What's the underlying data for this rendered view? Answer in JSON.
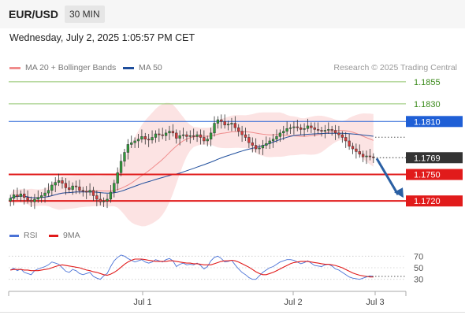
{
  "header": {
    "pair": "EUR/USD",
    "timeframe": "30 MIN"
  },
  "datetime": "Wednesday, July 2, 2025 1:05:57 PM CET",
  "legend": {
    "bollinger": {
      "label": "MA 20 + Bollinger Bands",
      "color": "#f08c8c"
    },
    "ma50": {
      "label": "MA 50",
      "color": "#1f4e9c"
    },
    "credit": "Research © 2025 Trading Central"
  },
  "rsi_legend": {
    "rsi": {
      "label": "RSI",
      "color": "#4a72d6"
    },
    "ma9": {
      "label": "9MA",
      "color": "#e11b1b"
    }
  },
  "chart_data": [
    {
      "type": "candlestick",
      "title": "EUR/USD 30 MIN",
      "ylim": [
        1.1705,
        1.1862
      ],
      "current_price": 1.1769,
      "price_levels": [
        {
          "value": 1.1855,
          "label": "1.1855",
          "color": "#8fc46b",
          "style": "resistance"
        },
        {
          "value": 1.183,
          "label": "1.1830",
          "color": "#8fc46b",
          "style": "resistance"
        },
        {
          "value": 1.181,
          "label": "1.1810",
          "color": "#1f5fd6",
          "style": "pivot"
        },
        {
          "value": 1.175,
          "label": "1.1750",
          "color": "#e11b1b",
          "style": "support"
        },
        {
          "value": 1.172,
          "label": "1.1720",
          "color": "#e11b1b",
          "style": "support"
        }
      ],
      "x_ticks": [
        "Jul 1",
        "Jul 2",
        "Jul 3"
      ],
      "close_series": [
        1.1723,
        1.1727,
        1.1725,
        1.1728,
        1.1724,
        1.1721,
        1.1719,
        1.1722,
        1.1724,
        1.1726,
        1.1729,
        1.1732,
        1.1738,
        1.1741,
        1.1743,
        1.174,
        1.1735,
        1.1733,
        1.1737,
        1.1736,
        1.1732,
        1.1731,
        1.173,
        1.1732,
        1.1726,
        1.1722,
        1.1719,
        1.172,
        1.1722,
        1.173,
        1.174,
        1.1752,
        1.1765,
        1.1775,
        1.1784,
        1.1786,
        1.1788,
        1.179,
        1.1793,
        1.179,
        1.1789,
        1.1792,
        1.1796,
        1.1795,
        1.1794,
        1.1797,
        1.1799,
        1.1797,
        1.1791,
        1.1794,
        1.1795,
        1.1793,
        1.1794,
        1.1793,
        1.1795,
        1.1792,
        1.1788,
        1.179,
        1.1797,
        1.1808,
        1.1812,
        1.181,
        1.1806,
        1.1807,
        1.1808,
        1.1803,
        1.1799,
        1.1795,
        1.1792,
        1.1786,
        1.1783,
        1.1779,
        1.178,
        1.1783,
        1.1785,
        1.1788,
        1.179,
        1.1793,
        1.1797,
        1.1799,
        1.1802,
        1.1803,
        1.1804,
        1.1803,
        1.1801,
        1.1802,
        1.1805,
        1.1803,
        1.1801,
        1.18,
        1.1799,
        1.18,
        1.1801,
        1.18,
        1.1797,
        1.1795,
        1.1792,
        1.1788,
        1.1782,
        1.1779,
        1.1776,
        1.1773,
        1.177,
        1.1771,
        1.177,
        1.1769
      ],
      "forecast": {
        "from": 1.1769,
        "to": 1.172,
        "direction": "down",
        "color": "#2a5fa3"
      }
    },
    {
      "type": "line",
      "title": "RSI",
      "ylim": [
        20,
        80
      ],
      "y_ticks": [
        70,
        50,
        30
      ],
      "series": [
        {
          "name": "RSI",
          "color": "#4a72d6",
          "values": [
            46,
            49,
            45,
            48,
            42,
            40,
            38,
            45,
            48,
            50,
            52,
            55,
            60,
            58,
            56,
            50,
            44,
            42,
            47,
            45,
            40,
            38,
            40,
            42,
            35,
            32,
            30,
            36,
            40,
            52,
            62,
            68,
            72,
            70,
            66,
            63,
            60,
            62,
            64,
            60,
            58,
            60,
            64,
            62,
            60,
            64,
            66,
            62,
            52,
            56,
            58,
            55,
            56,
            55,
            58,
            54,
            48,
            52,
            62,
            68,
            70,
            66,
            60,
            61,
            63,
            55,
            48,
            42,
            38,
            33,
            30,
            30,
            36,
            42,
            46,
            50,
            52,
            56,
            60,
            62,
            64,
            64,
            63,
            60,
            57,
            59,
            62,
            58,
            54,
            53,
            52,
            55,
            56,
            53,
            48,
            46,
            42,
            38,
            34,
            32,
            31,
            30,
            32,
            34,
            36,
            35
          ]
        },
        {
          "name": "9MA",
          "color": "#e11b1b",
          "values": [
            46,
            47,
            47,
            47,
            46,
            46,
            45,
            45,
            45,
            46,
            47,
            48,
            50,
            52,
            54,
            55,
            54,
            53,
            52,
            51,
            50,
            48,
            46,
            45,
            43,
            42,
            40,
            38,
            37,
            39,
            42,
            46,
            51,
            56,
            60,
            63,
            65,
            65,
            65,
            64,
            63,
            62,
            61,
            61,
            61,
            61,
            62,
            62,
            61,
            60,
            59,
            58,
            58,
            57,
            57,
            56,
            55,
            55,
            55,
            57,
            59,
            61,
            62,
            62,
            63,
            62,
            60,
            57,
            54,
            51,
            47,
            43,
            40,
            38,
            38,
            40,
            42,
            45,
            48,
            51,
            54,
            57,
            59,
            60,
            61,
            61,
            61,
            60,
            59,
            58,
            57,
            56,
            56,
            55,
            54,
            52,
            50,
            47,
            44,
            41,
            39,
            37,
            36,
            35,
            34,
            34
          ]
        }
      ]
    }
  ]
}
